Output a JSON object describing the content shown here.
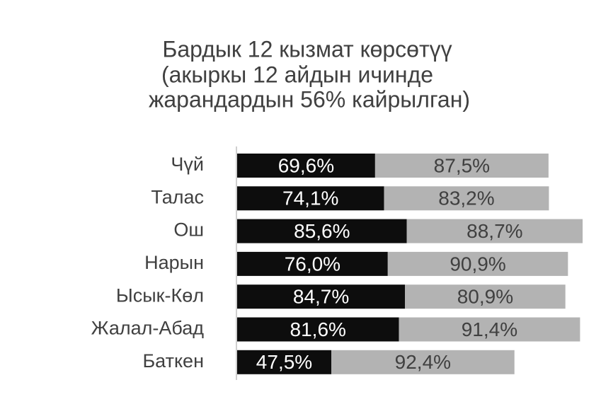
{
  "chart_data": {
    "type": "stacked-barh",
    "title": [
      "Бардык 12 кызмат көрсөтүү",
      "(акыркы 12 айдын ичинде",
      "жарандардын 56% кайрылган)"
    ],
    "categories": [
      "Чүй",
      "Талас",
      "Ош",
      "Нарын",
      "Ысык-Көл",
      "Жалал-Абад",
      "Баткен"
    ],
    "series": [
      {
        "color": "#0d0d0d",
        "label_color": "#ffffff",
        "values": [
          69.6,
          74.1,
          85.6,
          76.0,
          84.7,
          81.6,
          47.5
        ],
        "value_labels": [
          "69,6%",
          "74,1%",
          "85,6%",
          "76,0%",
          "84,7%",
          "81,6%",
          "47,5%"
        ]
      },
      {
        "color": "#b3b3b3",
        "label_color": "#404040",
        "values": [
          87.5,
          83.2,
          88.7,
          90.9,
          80.9,
          91.4,
          92.4
        ],
        "value_labels": [
          "87,5%",
          "83,2%",
          "88,7%",
          "90,9%",
          "80,9%",
          "91,4%",
          "92,4%"
        ]
      }
    ]
  }
}
